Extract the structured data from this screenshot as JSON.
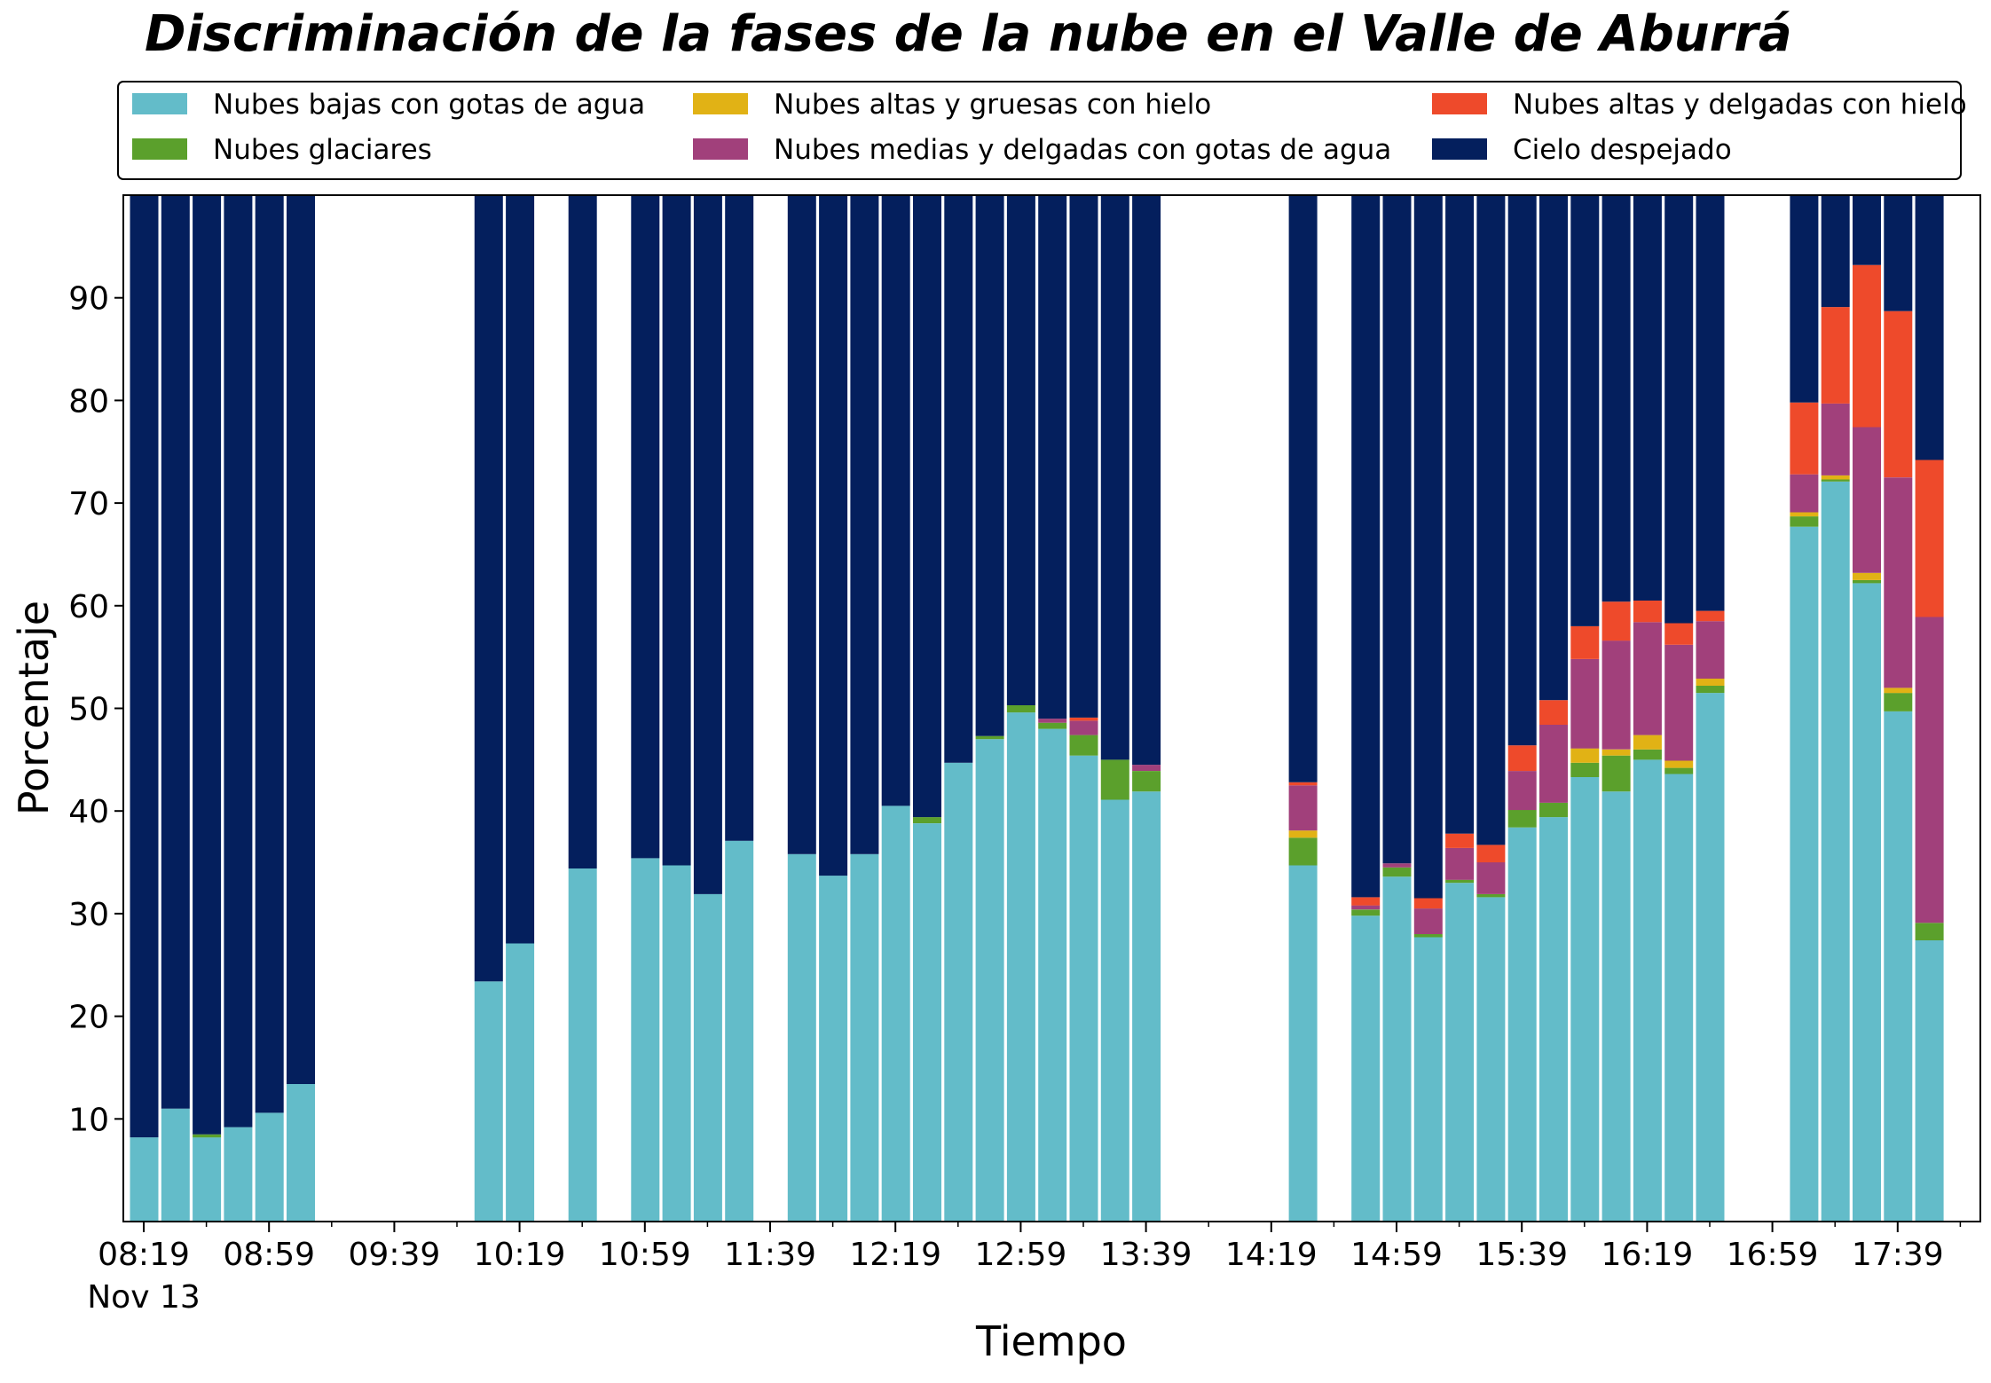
{
  "chart_data": {
    "type": "bar",
    "stacked": true,
    "title": "Discriminación de la fases de la nube en el Valle de Aburrá",
    "xlabel": "Tiempo",
    "ylabel": "Porcentaje",
    "ylim": [
      0,
      100
    ],
    "yticks": [
      10,
      20,
      30,
      40,
      50,
      60,
      70,
      80,
      90
    ],
    "x_date_label": "Nov 13",
    "xticks": [
      "08:19",
      "08:59",
      "09:39",
      "10:19",
      "10:59",
      "11:39",
      "12:19",
      "12:59",
      "13:39",
      "14:19",
      "14:59",
      "15:39",
      "16:19",
      "16:59",
      "17:39"
    ],
    "legend_position": "top, above plot, 3 columns",
    "grid": false,
    "series": [
      {
        "name": "Nubes bajas con gotas de agua",
        "color": "#63bcc9",
        "values": [
          8.2,
          11.0,
          8.2,
          9.2,
          10.6,
          13.4,
          0,
          0,
          0,
          0,
          0,
          23.4,
          27.1,
          0,
          34.4,
          0,
          35.4,
          34.7,
          31.9,
          37.1,
          0,
          35.8,
          33.7,
          35.8,
          40.5,
          38.8,
          44.7,
          47.0,
          49.6,
          48.0,
          45.4,
          41.1,
          41.9,
          0,
          0,
          0,
          0,
          34.7,
          0,
          29.8,
          33.6,
          27.7,
          33.0,
          31.6,
          38.4,
          39.4,
          43.3,
          41.9,
          45.0,
          43.6,
          51.5,
          0,
          0,
          67.7,
          72.1,
          62.2,
          49.7,
          27.4
        ]
      },
      {
        "name": "Nubes glaciares",
        "color": "#5ba02c",
        "values": [
          0,
          0,
          0.3,
          0,
          0,
          0,
          0,
          0,
          0,
          0,
          0,
          0,
          0,
          0,
          0,
          0,
          0,
          0,
          0,
          0,
          0,
          0,
          0,
          0,
          0,
          0.6,
          0,
          0.3,
          0.7,
          0.6,
          2.0,
          3.9,
          2.0,
          0,
          0,
          0,
          0,
          2.7,
          0,
          0.6,
          0.9,
          0.3,
          0.3,
          0.3,
          1.7,
          1.4,
          1.4,
          3.5,
          1.0,
          0.6,
          0.7,
          0,
          0,
          1.0,
          0.2,
          0.3,
          1.8,
          1.7
        ]
      },
      {
        "name": "Nubes altas y gruesas con hielo",
        "color": "#e1b215",
        "values": [
          0,
          0,
          0,
          0,
          0,
          0,
          0,
          0,
          0,
          0,
          0,
          0,
          0,
          0,
          0,
          0,
          0,
          0,
          0,
          0,
          0,
          0,
          0,
          0,
          0,
          0,
          0,
          0,
          0,
          0,
          0,
          0,
          0,
          0,
          0,
          0,
          0,
          0.7,
          0,
          0,
          0,
          0,
          0,
          0,
          0,
          0,
          1.4,
          0.6,
          1.4,
          0.7,
          0.7,
          0,
          0,
          0.4,
          0.4,
          0.7,
          0.5,
          0
        ]
      },
      {
        "name": "Nubes medias y delgadas con gotas de agua",
        "color": "#a1407b",
        "values": [
          0,
          0,
          0,
          0,
          0,
          0,
          0,
          0,
          0,
          0,
          0,
          0,
          0,
          0,
          0,
          0,
          0,
          0,
          0,
          0,
          0,
          0,
          0,
          0,
          0,
          0,
          0,
          0,
          0,
          0.4,
          1.4,
          0,
          0.6,
          0,
          0,
          0,
          0,
          4.4,
          0,
          0.4,
          0.4,
          2.5,
          3.1,
          3.1,
          3.8,
          7.6,
          8.7,
          10.6,
          11.0,
          11.3,
          5.6,
          0,
          0,
          3.7,
          7.0,
          14.2,
          20.5,
          29.8
        ]
      },
      {
        "name": "Nubes altas y delgadas con hielo",
        "color": "#ee4a2b",
        "values": [
          0,
          0,
          0,
          0,
          0,
          0,
          0,
          0,
          0,
          0,
          0,
          0,
          0,
          0,
          0,
          0,
          0,
          0,
          0,
          0,
          0,
          0,
          0,
          0,
          0,
          0,
          0,
          0,
          0,
          0,
          0.3,
          0,
          0,
          0,
          0,
          0,
          0,
          0.3,
          0,
          0.8,
          0,
          1.0,
          1.4,
          1.7,
          2.5,
          2.4,
          3.2,
          3.8,
          2.1,
          2.1,
          1.0,
          0,
          0,
          7.0,
          9.4,
          15.8,
          16.2,
          15.3
        ]
      },
      {
        "name": "Cielo despejado",
        "color": "#041f5d",
        "values": [
          91.8,
          89.0,
          91.5,
          90.8,
          89.4,
          86.6,
          0,
          0,
          0,
          0,
          0,
          76.6,
          72.9,
          0,
          65.6,
          0,
          64.6,
          65.3,
          68.1,
          62.9,
          0,
          64.2,
          66.3,
          64.2,
          59.5,
          60.6,
          55.3,
          52.7,
          49.7,
          51.0,
          50.9,
          55.0,
          55.5,
          0,
          0,
          0,
          0,
          57.2,
          0,
          68.4,
          65.1,
          68.5,
          62.2,
          63.3,
          53.6,
          49.2,
          42.0,
          39.6,
          39.5,
          41.7,
          40.5,
          0,
          0,
          20.2,
          10.9,
          6.8,
          11.3,
          25.8
        ]
      }
    ]
  }
}
